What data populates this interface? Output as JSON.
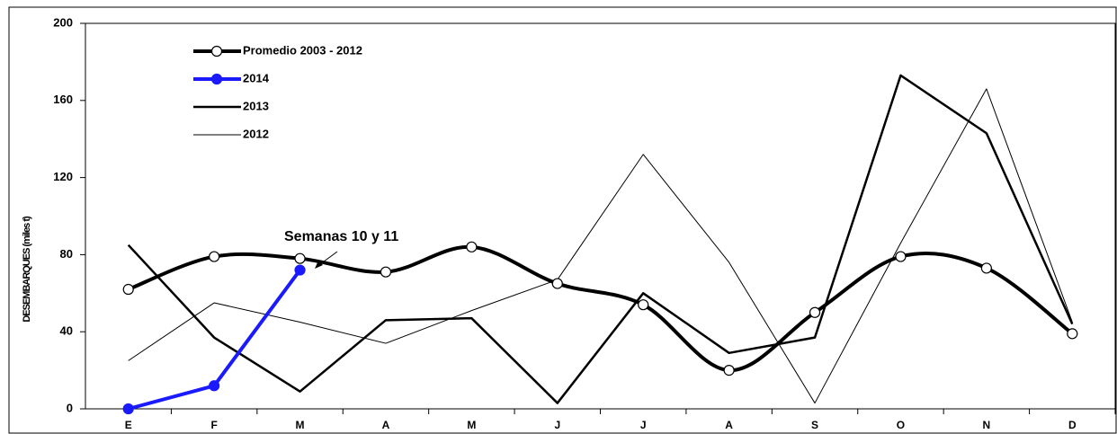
{
  "chart_data": {
    "type": "line",
    "y_label": "DESEMBARQUES (miles t)",
    "annotation": "Semanas 10 y 11",
    "categories": [
      "E",
      "F",
      "M",
      "A",
      "M",
      "J",
      "J",
      "A",
      "S",
      "O",
      "N",
      "D"
    ],
    "series": [
      {
        "name": "Promedio 2003 - 2012",
        "color": "#000000",
        "smooth": true,
        "marker": "open-circle",
        "values": [
          62,
          79,
          78,
          71,
          84,
          65,
          54,
          20,
          50,
          79,
          73,
          39
        ]
      },
      {
        "name": "2014",
        "color": "#1a1aff",
        "smooth": false,
        "marker": "filled-circle",
        "values": [
          0,
          12,
          72,
          null,
          null,
          null,
          null,
          null,
          null,
          null,
          null,
          null
        ]
      },
      {
        "name": "2013",
        "color": "#000000",
        "smooth": false,
        "marker": "none",
        "values": [
          85,
          37,
          9,
          46,
          47,
          3,
          60,
          29,
          37,
          173,
          143,
          44
        ]
      },
      {
        "name": "2012",
        "color": "#000000",
        "smooth": false,
        "marker": "none",
        "values": [
          25,
          55,
          45,
          34,
          51,
          67,
          132,
          76,
          3,
          86,
          166,
          45
        ]
      }
    ],
    "ylim": [
      0,
      200
    ],
    "yticks": [
      0,
      40,
      80,
      120,
      160,
      200
    ],
    "grid": false,
    "legend": "upper left"
  }
}
